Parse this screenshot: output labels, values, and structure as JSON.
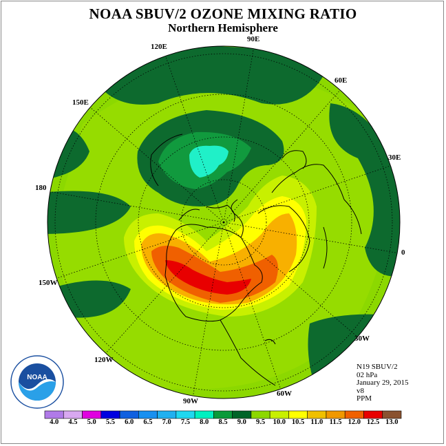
{
  "header": {
    "title": "NOAA SBUV/2 OZONE MIXING RATIO",
    "subtitle": "Northern Hemisphere"
  },
  "longitude_labels": [
    {
      "text": "90E"
    },
    {
      "text": "60E"
    },
    {
      "text": "30E"
    },
    {
      "text": "0"
    },
    {
      "text": "30W"
    },
    {
      "text": "60W"
    },
    {
      "text": "90W"
    },
    {
      "text": "120W"
    },
    {
      "text": "150W"
    },
    {
      "text": "180"
    },
    {
      "text": "150E"
    },
    {
      "text": "120E"
    }
  ],
  "info": {
    "satellite": "N19 SBUV/2",
    "level": "02 hPa",
    "date": "January 29, 2015",
    "version": "v8",
    "units": "PPM"
  },
  "logo": {
    "text": "NOAA"
  },
  "colorbar": {
    "labels": [
      "4.0",
      "4.5",
      "5.0",
      "5.5",
      "6.0",
      "6.5",
      "7.0",
      "7.5",
      "8.0",
      "8.5",
      "9.0",
      "9.5",
      "10.0",
      "10.5",
      "11.0",
      "11.5",
      "12.0",
      "12.5",
      "13.0"
    ],
    "colors": [
      "#b07ae8",
      "#d8a8f0",
      "#e000e0",
      "#0000e0",
      "#1060e0",
      "#1890f0",
      "#20b0f0",
      "#20d8f0",
      "#00f0c0",
      "#0a9a3a",
      "#006428",
      "#8cd800",
      "#c8f000",
      "#ffff00",
      "#f0c000",
      "#f09800",
      "#f06000",
      "#e80000",
      "#8a5230"
    ]
  },
  "style": {
    "land_outline": "#000000",
    "field_base": "#8cd800",
    "field_light": "#a8e000",
    "dark_green": "#0d6a2e",
    "mid_green": "#119a3e",
    "cyan": "#20f0c8",
    "yellow": "#ffff00",
    "orange": "#f8b000",
    "red_orange": "#f06000",
    "red": "#e80000"
  }
}
